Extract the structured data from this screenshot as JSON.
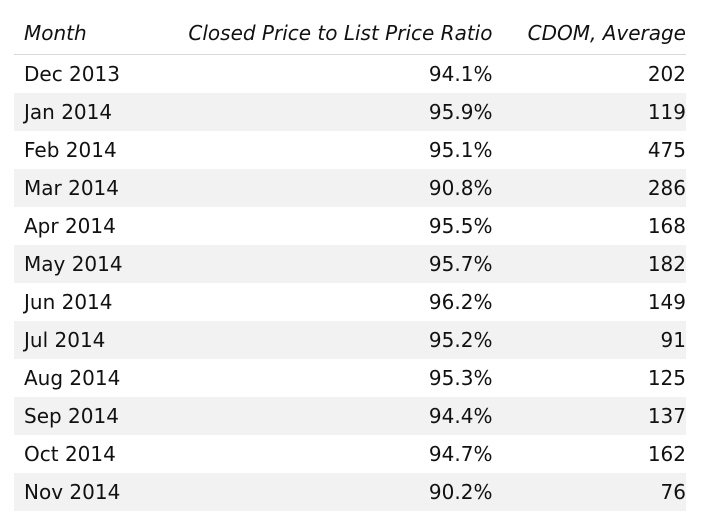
{
  "table": {
    "headers": [
      "Month",
      "Closed Price to List Price Ratio",
      "CDOM, Average"
    ],
    "rows": [
      [
        "Dec 2013",
        "94.1%",
        "202"
      ],
      [
        "Jan 2014",
        "95.9%",
        "119"
      ],
      [
        "Feb 2014",
        "95.1%",
        "475"
      ],
      [
        "Mar 2014",
        "90.8%",
        "286"
      ],
      [
        "Apr 2014",
        "95.5%",
        "168"
      ],
      [
        "May 2014",
        "95.7%",
        "182"
      ],
      [
        "Jun 2014",
        "96.2%",
        "149"
      ],
      [
        "Jul 2014",
        "95.2%",
        "91"
      ],
      [
        "Aug 2014",
        "95.3%",
        "125"
      ],
      [
        "Sep 2014",
        "94.4%",
        "137"
      ],
      [
        "Oct 2014",
        "94.7%",
        "162"
      ],
      [
        "Nov 2014",
        "90.2%",
        "76"
      ]
    ]
  }
}
